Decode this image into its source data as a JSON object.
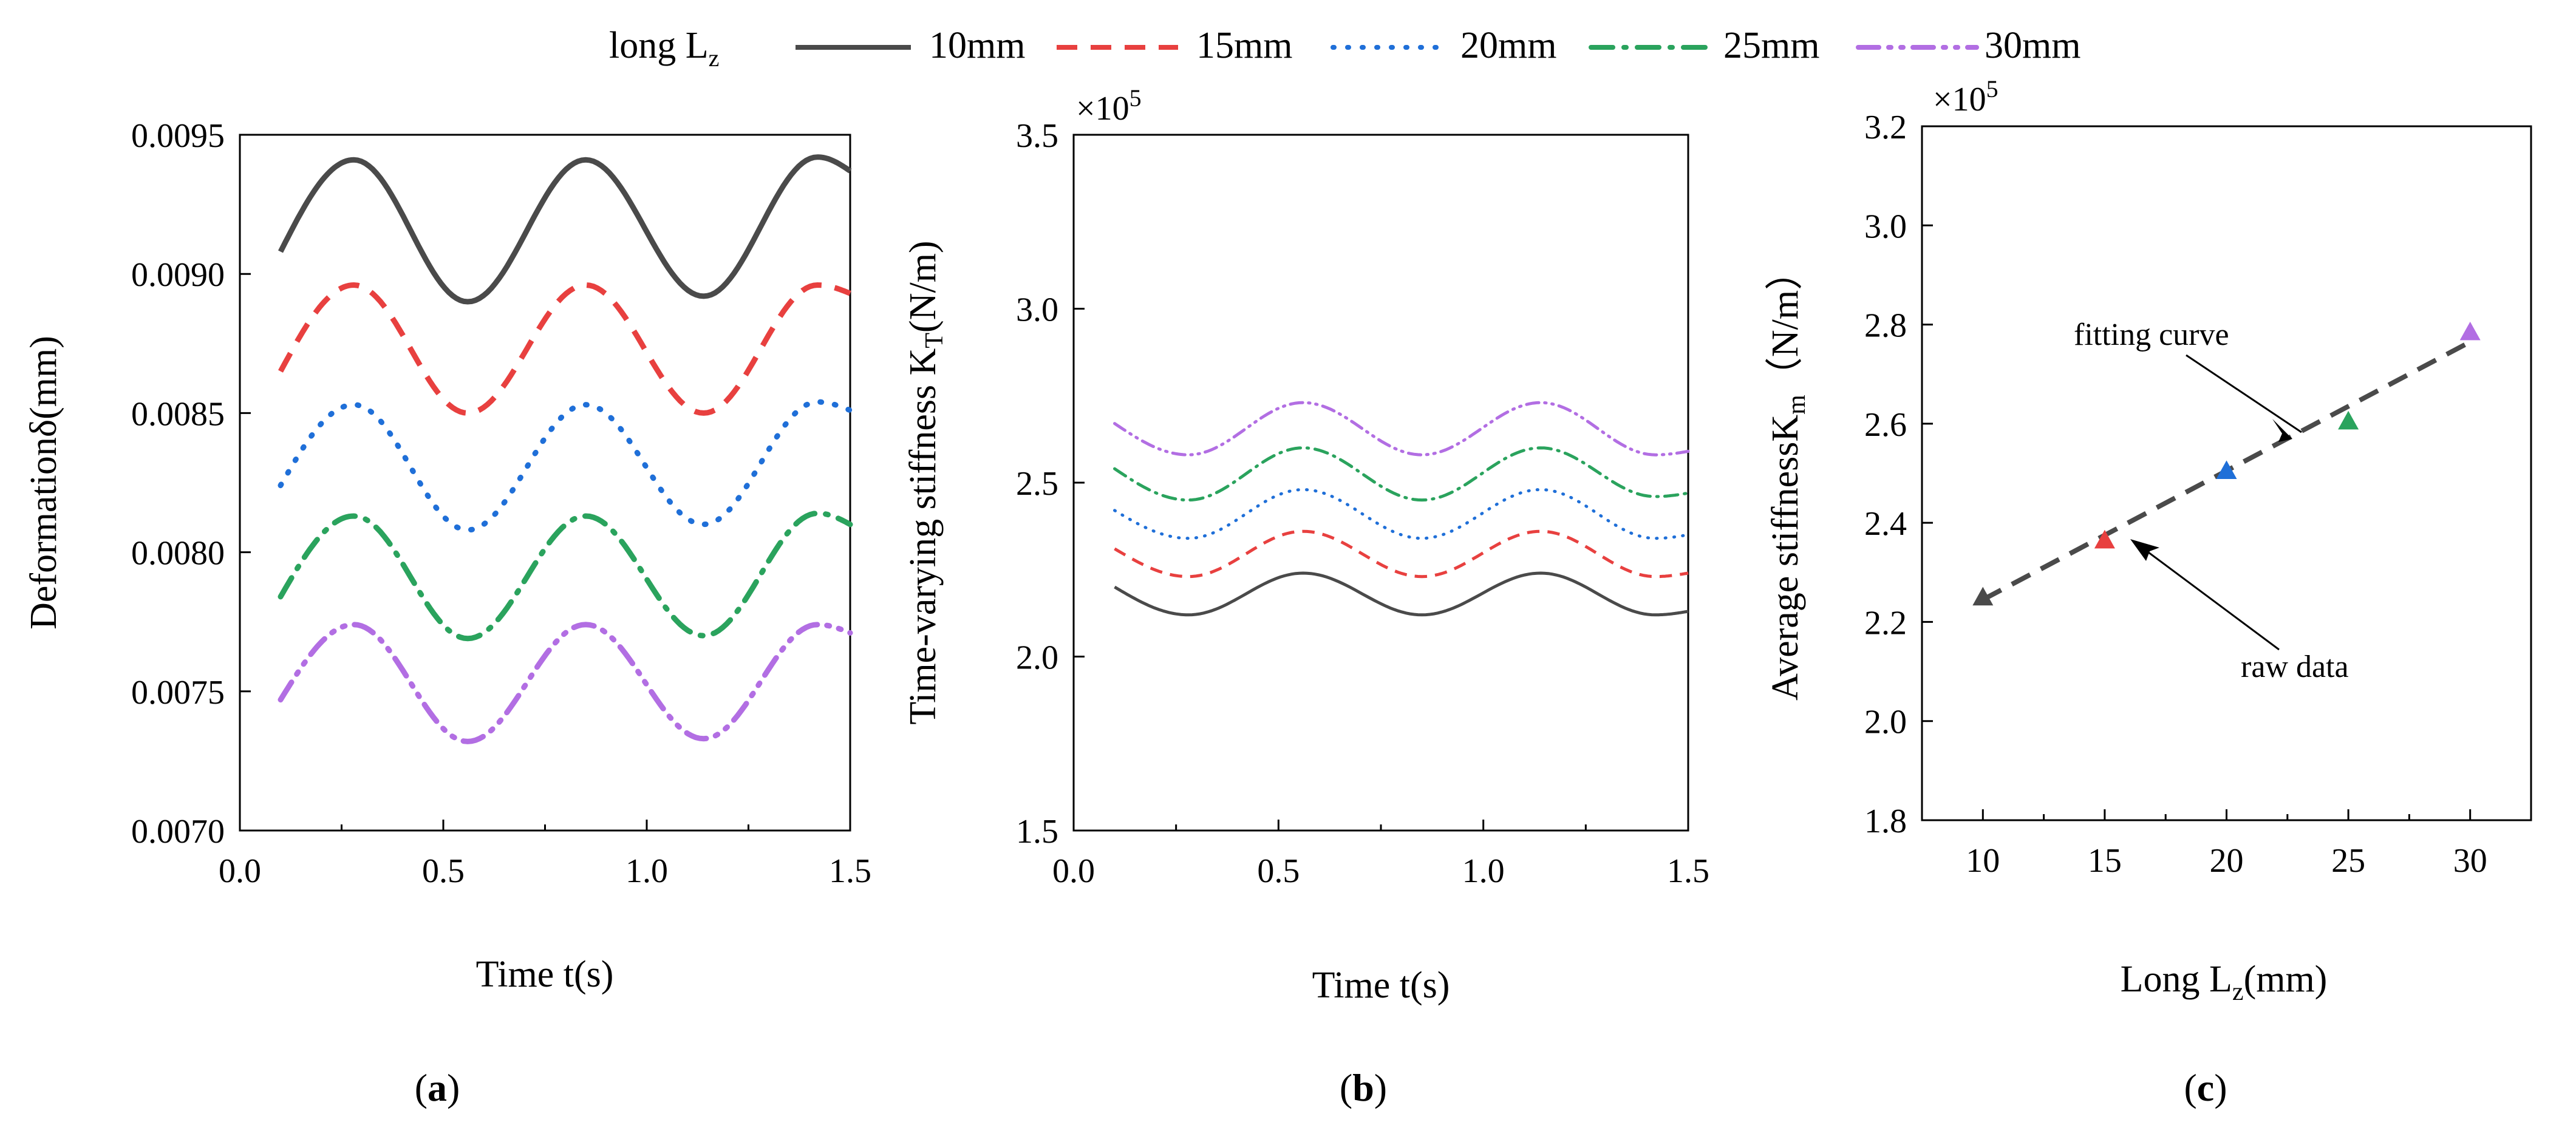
{
  "legend": {
    "title_main": "long L",
    "title_sub": "z",
    "entries": [
      {
        "label": "10mm",
        "color": "#4a4a4a",
        "dash": "solid"
      },
      {
        "label": "15mm",
        "color": "#e8403f",
        "dash": "dash"
      },
      {
        "label": "20mm",
        "color": "#1f6fd8",
        "dash": "dot"
      },
      {
        "label": "25mm",
        "color": "#2aa35d",
        "dash": "dashdot"
      },
      {
        "label": "30mm",
        "color": "#b26ee3",
        "dash": "dashdotdot"
      }
    ]
  },
  "panels": {
    "a": {
      "label_open": "(",
      "label_letter": "a",
      "label_close": ")",
      "xlabel": "Time t(s)",
      "ylabel": "Deformationδ(mm)",
      "xticks": [
        "0.0",
        "0.5",
        "1.0",
        "1.5"
      ],
      "yticks": [
        "0.0070",
        "0.0075",
        "0.0080",
        "0.0085",
        "0.0090",
        "0.0095"
      ]
    },
    "b": {
      "label_open": "(",
      "label_letter": "b",
      "label_close": ")",
      "xlabel": "Time t(s)",
      "ylabel_main": "Time-varying stiffness K",
      "ylabel_sub": "T",
      "ylabel_tail": "(N/m)",
      "multiplier": "×10",
      "multiplier_exp": "5",
      "xticks": [
        "0.0",
        "0.5",
        "1.0",
        "1.5"
      ],
      "yticks": [
        "1.5",
        "2.0",
        "2.5",
        "3.0",
        "3.5"
      ]
    },
    "c": {
      "label_open": "(",
      "label_letter": "c",
      "label_close": ")",
      "xlabel_main": "Long L",
      "xlabel_sub": "z",
      "xlabel_tail": "(mm)",
      "ylabel_main": "Average stiffnessK",
      "ylabel_sub": "m",
      "ylabel_tail": "（N/m）",
      "multiplier": "×10",
      "multiplier_exp": "5",
      "xticks": [
        "10",
        "15",
        "20",
        "25",
        "30"
      ],
      "yticks": [
        "1.8",
        "2.0",
        "2.2",
        "2.4",
        "2.6",
        "2.8",
        "3.0",
        "3.2"
      ],
      "annotation_fit": "fitting curve",
      "annotation_raw": "raw data"
    }
  },
  "chart_data": [
    {
      "type": "line",
      "id": "a",
      "title": "",
      "xlabel": "Time t(s)",
      "ylabel": "Deformationδ(mm)",
      "xlim": [
        0.0,
        1.5
      ],
      "ylim": [
        0.007,
        0.0095
      ],
      "x": [
        0.1,
        0.28,
        0.56,
        0.85,
        1.14,
        1.42,
        1.5
      ],
      "series": [
        {
          "name": "10mm",
          "values": [
            0.00908,
            0.00941,
            0.0089,
            0.00941,
            0.00892,
            0.00942,
            0.00937
          ]
        },
        {
          "name": "15mm",
          "values": [
            0.00865,
            0.00896,
            0.0085,
            0.00896,
            0.0085,
            0.00896,
            0.00893
          ]
        },
        {
          "name": "20mm",
          "values": [
            0.00824,
            0.00853,
            0.00808,
            0.00853,
            0.0081,
            0.00854,
            0.00851
          ]
        },
        {
          "name": "25mm",
          "values": [
            0.00784,
            0.00813,
            0.00769,
            0.00813,
            0.0077,
            0.00814,
            0.0081
          ]
        },
        {
          "name": "30mm",
          "values": [
            0.00747,
            0.00774,
            0.00732,
            0.00774,
            0.00733,
            0.00774,
            0.00771
          ]
        }
      ]
    },
    {
      "type": "line",
      "id": "b",
      "title": "",
      "xlabel": "Time t(s)",
      "ylabel": "Time-varying stiffness KT(N/m)",
      "multiplier": 100000,
      "xlim": [
        0.0,
        1.5
      ],
      "ylim": [
        1.5,
        3.5
      ],
      "x": [
        0.1,
        0.28,
        0.56,
        0.85,
        1.14,
        1.42,
        1.5
      ],
      "series": [
        {
          "name": "10mm",
          "values": [
            2.2,
            2.12,
            2.24,
            2.12,
            2.24,
            2.12,
            2.13
          ]
        },
        {
          "name": "15mm",
          "values": [
            2.31,
            2.23,
            2.36,
            2.23,
            2.36,
            2.23,
            2.24
          ]
        },
        {
          "name": "20mm",
          "values": [
            2.42,
            2.34,
            2.48,
            2.34,
            2.48,
            2.34,
            2.35
          ]
        },
        {
          "name": "25mm",
          "values": [
            2.54,
            2.45,
            2.6,
            2.45,
            2.6,
            2.46,
            2.47
          ]
        },
        {
          "name": "30mm",
          "values": [
            2.67,
            2.58,
            2.73,
            2.58,
            2.73,
            2.58,
            2.59
          ]
        }
      ]
    },
    {
      "type": "scatter",
      "id": "c",
      "title": "",
      "xlabel": "Long Lz(mm)",
      "ylabel": "Average stiffnessKm（N/m）",
      "multiplier": 100000,
      "xlim": [
        7.5,
        32.5
      ],
      "ylim": [
        1.8,
        3.2
      ],
      "x": [
        10,
        15,
        20,
        25,
        30
      ],
      "series": [
        {
          "name": "raw data",
          "values": [
            2.25,
            2.365,
            2.505,
            2.605,
            2.785
          ]
        },
        {
          "name": "fitting curve",
          "values": [
            2.245,
            2.375,
            2.505,
            2.635,
            2.765
          ]
        }
      ],
      "point_colors": [
        "#4a4a4a",
        "#e8403f",
        "#1f6fd8",
        "#2aa35d",
        "#b26ee3"
      ],
      "fit_color": "#4a4a4a"
    }
  ]
}
